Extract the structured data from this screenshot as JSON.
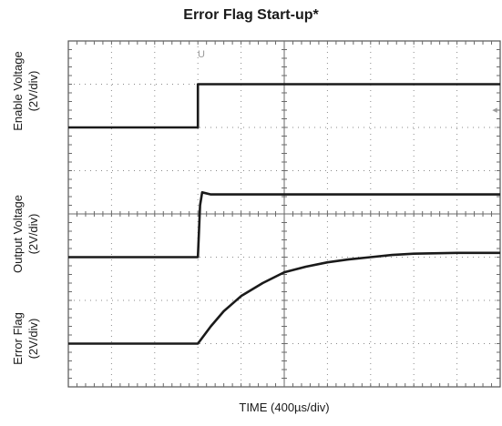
{
  "chart_data": {
    "type": "line",
    "title": "Error Flag Start-up*",
    "xlabel": "TIME (400µs/div)",
    "x_divisions": 10,
    "y_divisions": 8,
    "grid": true,
    "xlim": [
      0,
      10
    ],
    "ylim": [
      0,
      8
    ],
    "marker_label": "U",
    "x_unit": "div",
    "y_unit": "div",
    "channels": [
      {
        "name": "Enable Voltage",
        "label_lines": [
          "Enable Voltage",
          "(2V/div)"
        ]
      },
      {
        "name": "Output Voltage",
        "label_lines": [
          "Output Voltage",
          "(2V/div)"
        ]
      },
      {
        "name": "Error Flag",
        "label_lines": [
          "Error Flag",
          "(2V/div)"
        ]
      }
    ],
    "series": [
      {
        "name": "Enable Voltage",
        "x": [
          0,
          3.0,
          3.0,
          10
        ],
        "y": [
          6.0,
          6.0,
          7.0,
          7.0
        ]
      },
      {
        "name": "Output Voltage",
        "x": [
          0,
          3.0,
          3.05,
          3.1,
          3.3,
          10
        ],
        "y": [
          3.0,
          3.0,
          4.2,
          4.5,
          4.45,
          4.45
        ]
      },
      {
        "name": "Error Flag",
        "x": [
          0,
          3.0,
          3.3,
          3.6,
          4.0,
          4.5,
          5.0,
          5.5,
          6.0,
          6.5,
          7.0,
          7.5,
          8.0,
          9.0,
          10
        ],
        "y": [
          1.0,
          1.0,
          1.4,
          1.75,
          2.1,
          2.4,
          2.65,
          2.78,
          2.88,
          2.95,
          3.0,
          3.05,
          3.08,
          3.1,
          3.1
        ]
      }
    ]
  }
}
